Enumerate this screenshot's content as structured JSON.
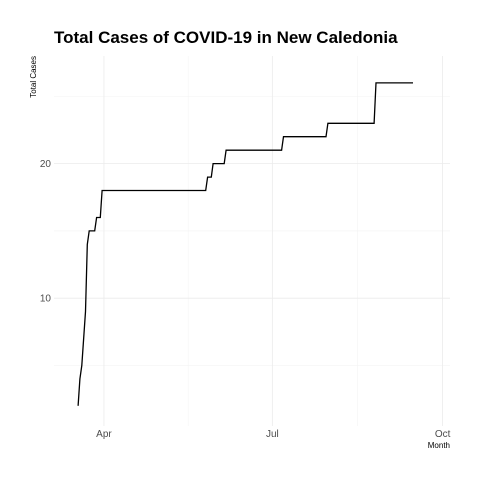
{
  "chart_data": {
    "type": "line",
    "title": "Total Cases of COVID-19 in New Caledonia",
    "xlabel": "Month",
    "ylabel": "Total Cases",
    "grid": true,
    "legend": "none",
    "xlim": [
      "2020-03-05",
      "2020-10-05"
    ],
    "ylim": [
      0.5,
      28
    ],
    "x_ticks": [
      {
        "value": "2020-04-01",
        "label": "Apr"
      },
      {
        "value": "2020-07-01",
        "label": "Jul"
      },
      {
        "value": "2020-10-01",
        "label": "Oct"
      }
    ],
    "y_ticks": [
      10,
      20
    ],
    "series": [
      {
        "points": [
          [
            "2020-03-18",
            2
          ],
          [
            "2020-03-19",
            4
          ],
          [
            "2020-03-20",
            5
          ],
          [
            "2020-03-22",
            9
          ],
          [
            "2020-03-23",
            14
          ],
          [
            "2020-03-24",
            15
          ],
          [
            "2020-03-27",
            15
          ],
          [
            "2020-03-28",
            16
          ],
          [
            "2020-03-30",
            16
          ],
          [
            "2020-03-31",
            18
          ],
          [
            "2020-05-26",
            18
          ],
          [
            "2020-05-27",
            19
          ],
          [
            "2020-05-29",
            19
          ],
          [
            "2020-05-30",
            20
          ],
          [
            "2020-06-05",
            20
          ],
          [
            "2020-06-06",
            21
          ],
          [
            "2020-07-06",
            21
          ],
          [
            "2020-07-07",
            22
          ],
          [
            "2020-07-30",
            22
          ],
          [
            "2020-07-31",
            23
          ],
          [
            "2020-08-25",
            23
          ],
          [
            "2020-08-26",
            26
          ],
          [
            "2020-09-15",
            26
          ]
        ]
      }
    ]
  }
}
